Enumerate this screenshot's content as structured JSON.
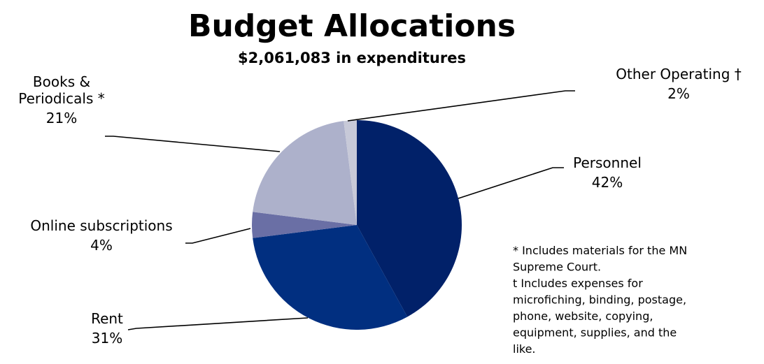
{
  "chart_data": {
    "type": "pie",
    "title": "Budget Allocations",
    "subtitle": "$2,061,083 in expenditures",
    "slices": [
      {
        "name": "Personnel",
        "value": 42,
        "value_label": "42%",
        "color": "#012169"
      },
      {
        "name": "Rent",
        "value": 31,
        "value_label": "31%",
        "color": "#012f80"
      },
      {
        "name": "Online subscriptions",
        "value": 4,
        "value_label": "4%",
        "color": "#6a6fa5"
      },
      {
        "name": "Books & Periodicals *",
        "value": 21,
        "value_label": "21%",
        "color": "#adb1cb"
      },
      {
        "name": "Other Operating †",
        "value": 2,
        "value_label": "2%",
        "color": "#c7c9d8"
      }
    ],
    "label_lines": {
      "Books & Periodicals *": [
        "Books &",
        "Periodicals *"
      ]
    },
    "footnotes": [
      "* Includes materials for the MN",
      "Supreme Court.",
      "t Includes expenses for",
      "microfiching, binding, postage,",
      "phone, website, copying,",
      "equipment, supplies, and the",
      "like."
    ]
  }
}
